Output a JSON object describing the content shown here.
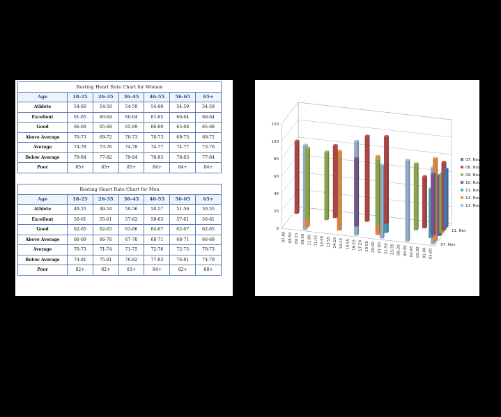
{
  "women_table": {
    "title": "Resting Heart Rate Chart for Women",
    "header": [
      "Age",
      "18-25",
      "26-35",
      "36-45",
      "46-55",
      "56-65",
      "65+"
    ],
    "rows": [
      [
        "Athlete",
        "54-60",
        "54-59",
        "54-59",
        "54-60",
        "54-59",
        "54-59"
      ],
      [
        "Excellent",
        "61-65",
        "60-64",
        "60-64",
        "61-65",
        "60-64",
        "60-64"
      ],
      [
        "Good",
        "66-69",
        "65-68",
        "65-69",
        "66-69",
        "65-68",
        "65-68"
      ],
      [
        "Above Average",
        "70-73",
        "69-72",
        "70-73",
        "70-73",
        "69-73",
        "69-72"
      ],
      [
        "Average",
        "74-78",
        "73-76",
        "74-78",
        "74-77",
        "74-77",
        "73-76"
      ],
      [
        "Below Average",
        "79-84",
        "77-82",
        "79-84",
        "78-83",
        "78-83",
        "77-84"
      ],
      [
        "Poor",
        "85+",
        "83+",
        "85+",
        "84+",
        "84+",
        "84+"
      ]
    ]
  },
  "men_table": {
    "title": "Resting Heart Rate Chart for Men",
    "header": [
      "Age",
      "18-25",
      "26-35",
      "36-45",
      "46-55",
      "56-65",
      "65+"
    ],
    "rows": [
      [
        "Athlete",
        "49-55",
        "49-54",
        "50-56",
        "50-57",
        "51-56",
        "50-55"
      ],
      [
        "Excellent",
        "56-61",
        "55-61",
        "57-62",
        "58-63",
        "57-61",
        "56-61"
      ],
      [
        "Good",
        "62-65",
        "62-65",
        "63-66",
        "64-67",
        "62-67",
        "62-65"
      ],
      [
        "Above Average",
        "66-69",
        "66-70",
        "67-70",
        "68-71",
        "68-71",
        "66-69"
      ],
      [
        "Average",
        "70-73",
        "71-74",
        "71-75",
        "72-76",
        "72-75",
        "70-73"
      ],
      [
        "Below Average",
        "74-81",
        "75-81",
        "76-82",
        "77-83",
        "76-81",
        "74-79"
      ],
      [
        "Poor",
        "82+",
        "82+",
        "83+",
        "84+",
        "82+",
        "80+"
      ]
    ]
  },
  "chart_data": {
    "type": "bar",
    "subtype": "3d-clustered-column",
    "title": "",
    "ylim": [
      0,
      120
    ],
    "yticks": [
      "0",
      "20",
      "40",
      "60",
      "80",
      "100",
      "120"
    ],
    "categories": [
      "07:00",
      "08:50",
      "09:15",
      "09:50",
      "11:00",
      "11:15",
      "12:00",
      "13:55",
      "14:10",
      "14:15",
      "14:55",
      "16:15",
      "17:20",
      "19:50",
      "20:00",
      "21:00",
      "21:50",
      "23:35",
      "00:20",
      "00:30",
      "00:45",
      "01:00",
      "01:40",
      "03:00"
    ],
    "depth_labels": [
      "07. Nov",
      "11. Nov"
    ],
    "series": [
      {
        "name": "07. Nov",
        "color": "#4f81bd",
        "values": [
          null,
          null,
          null,
          null,
          null,
          null,
          null,
          null,
          null,
          null,
          null,
          null,
          null,
          null,
          null,
          null,
          null,
          null,
          null,
          null,
          null,
          null,
          null,
          67
        ]
      },
      {
        "name": "08. Nov",
        "color": "#c0504d",
        "values": [
          83,
          null,
          null,
          null,
          null,
          null,
          83,
          null,
          null,
          null,
          null,
          98,
          null,
          null,
          100,
          null,
          null,
          null,
          null,
          null,
          59,
          null,
          null,
          78
        ]
      },
      {
        "name": "09. Nov",
        "color": "#9bbb59",
        "values": [
          null,
          null,
          80,
          null,
          null,
          78,
          null,
          null,
          null,
          null,
          null,
          null,
          null,
          76,
          null,
          null,
          null,
          null,
          null,
          76,
          null,
          null,
          null,
          68
        ]
      },
      {
        "name": "10. Nov",
        "color": "#8064a2",
        "values": [
          null,
          null,
          null,
          null,
          null,
          null,
          null,
          null,
          null,
          null,
          78,
          null,
          null,
          null,
          null,
          null,
          null,
          null,
          null,
          null,
          null,
          null,
          70,
          69
        ]
      },
      {
        "name": "11. Nov",
        "color": "#4bacc6",
        "values": [
          null,
          null,
          null,
          null,
          null,
          null,
          null,
          null,
          null,
          null,
          null,
          null,
          null,
          null,
          null,
          77,
          null,
          null,
          null,
          null,
          null,
          null,
          56,
          null
        ]
      },
      {
        "name": "12. Nov",
        "color": "#f79646",
        "values": [
          null,
          null,
          null,
          84,
          null,
          null,
          null,
          null,
          91,
          null,
          null,
          null,
          null,
          null,
          90,
          null,
          null,
          null,
          null,
          null,
          null,
          null,
          null,
          95
        ]
      },
      {
        "name": "13. Nov",
        "color": "#a5c2e4",
        "values": [
          null,
          null,
          null,
          97,
          null,
          null,
          null,
          null,
          null,
          null,
          null,
          108,
          null,
          null,
          null,
          84,
          null,
          null,
          null,
          93,
          null,
          null,
          null,
          88
        ]
      }
    ],
    "legend_position": "right",
    "grid": true
  }
}
